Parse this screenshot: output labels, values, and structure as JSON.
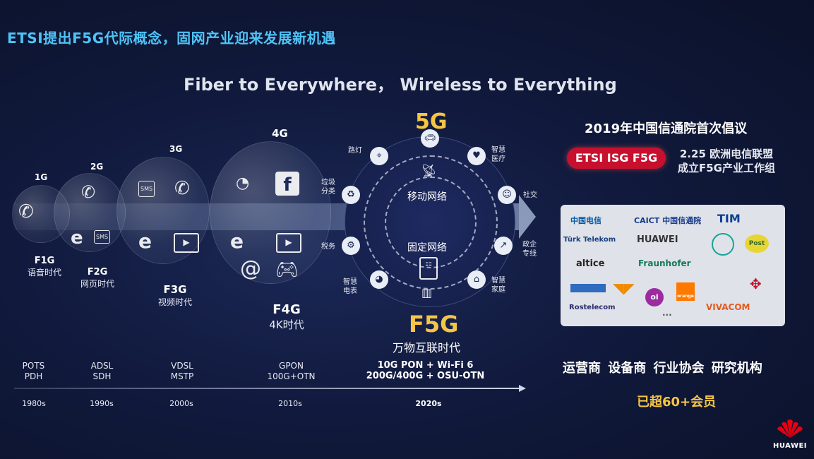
{
  "title": "ETSI提出F5G代际概念，固网产业迎来发展新机遇",
  "subtitle": "Fiber to Everywhere， Wireless to Everything",
  "wireless_gens": [
    "1G",
    "2G",
    "3G",
    "4G",
    "5G"
  ],
  "fixed_gens": [
    {
      "gen": "F1G",
      "desc": "语音时代"
    },
    {
      "gen": "F2G",
      "desc": "网页时代"
    },
    {
      "gen": "F3G",
      "desc": "视频时代"
    },
    {
      "gen": "F4G",
      "desc": "4K时代"
    },
    {
      "gen": "F5G",
      "desc": "万物互联时代"
    }
  ],
  "sms_label": "SMS",
  "ring": {
    "inner_top": "移动网络",
    "inner_bottom": "固定网络",
    "nodes": {
      "road_light": "路灯",
      "health": "智慧\n医疗",
      "garbage": "垃圾\n分类",
      "social": "社交",
      "tax": "税务",
      "gov": "政企\n专线",
      "meter": "智慧\n电表",
      "home": "智慧\n家庭"
    }
  },
  "tech": [
    {
      "tech": "POTS\nPDH",
      "year": "1980s"
    },
    {
      "tech": "ADSL\nSDH",
      "year": "1990s"
    },
    {
      "tech": "VDSL\nMSTP",
      "year": "2000s"
    },
    {
      "tech": "GPON\n100G+OTN",
      "year": "2010s"
    },
    {
      "tech": "10G PON + Wi-Fi 6\n200G/400G + OSU-OTN",
      "year": "2020s"
    }
  ],
  "right": {
    "heading": "2019年中国信通院首次倡议",
    "badge": "ETSI ISG F5G",
    "note_line1": "2.25 欧洲电信联盟",
    "note_line2": "成立F5G产业工作组",
    "logos": {
      "china_telecom": "中国电信",
      "caict": "CAICT 中国信通院",
      "tim": "TIM",
      "turk": "Türk Telekom",
      "huawei": "HUAWEI",
      "post": "Post",
      "altice": "altice",
      "fraunhofer": "Fraunhofer",
      "rostelecom": "Rostelecom",
      "oi": "oi",
      "orange": "orange",
      "vivacom": "VIVACOM",
      "more": "..."
    },
    "categories": "运营商  设备商  行业协会  研究机构",
    "members": "已超60+会员"
  },
  "brand": "HUAWEI",
  "colors": {
    "accent_title": "#4fc3f7",
    "gold": "#f6c544",
    "badge_red": "#c8102e",
    "huawei_red": "#e60012"
  }
}
